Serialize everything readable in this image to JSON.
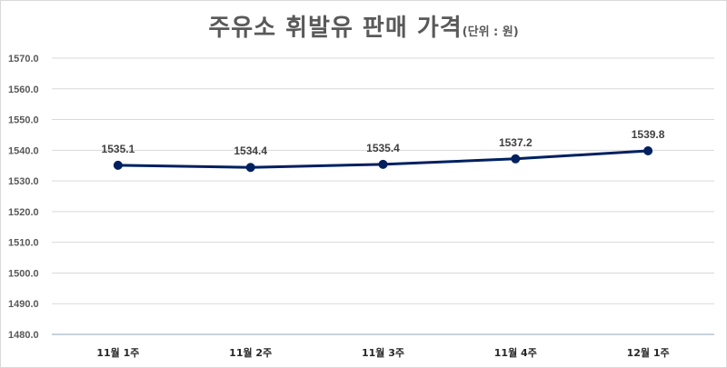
{
  "chart_data": {
    "type": "line",
    "title": "주유소 휘발유 판매 가격",
    "subtitle": "(단위 : 원)",
    "xlabel": "",
    "ylabel": "",
    "categories": [
      "11월 1주",
      "11월 2주",
      "11월 3주",
      "11월 4주",
      "12월 1주"
    ],
    "series": [
      {
        "name": "휘발유 판매 가격",
        "values": [
          1535.1,
          1534.4,
          1535.4,
          1537.2,
          1539.8
        ],
        "color": "#002060"
      }
    ],
    "data_labels": [
      "1535.1",
      "1534.4",
      "1535.4",
      "1537.2",
      "1539.8"
    ],
    "ylim": [
      1480.0,
      1570.0
    ],
    "yticks": [
      "1570.0",
      "1560.0",
      "1550.0",
      "1540.0",
      "1530.0",
      "1520.0",
      "1510.0",
      "1500.0",
      "1490.0",
      "1480.0"
    ],
    "grid": true,
    "legend": "none"
  },
  "header": {
    "title": "주유소 휘발유 판매 가격",
    "unit": "(단위 : 원)"
  },
  "colors": {
    "line": "#002060",
    "grid": "#d9d9d9",
    "axis": "#c8d3dc",
    "title": "#595959"
  }
}
